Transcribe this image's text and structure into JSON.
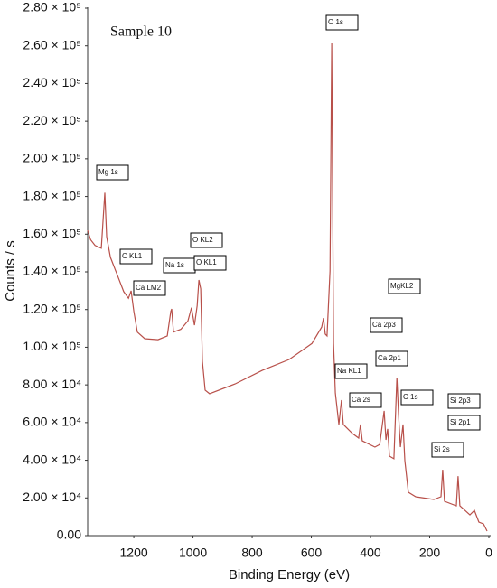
{
  "chart_data": {
    "type": "line",
    "annotations": [
      "Sample 10",
      "O 1s",
      "Mg 1s",
      "C KL1",
      "Na 1s",
      "Ca LM2",
      "O KL2",
      "O KL1",
      "MgKL2",
      "Ca 2p3",
      "Ca 2p1",
      "Na KL1",
      "Ca 2s",
      "C 1s",
      "Si 2p3",
      "Si 2p1",
      "Si 2s"
    ],
    "x_label": "Binding Energy (eV)",
    "y_label": "Counts / s",
    "color": "#b8504a",
    "x": [
      1356,
      1346,
      1331,
      1310,
      1298,
      1292,
      1279,
      1255,
      1234,
      1218,
      1209,
      1200,
      1188,
      1163,
      1118,
      1087,
      1075,
      1072,
      1066,
      1041,
      1017,
      1005,
      995,
      986,
      980,
      974,
      968,
      959,
      944,
      858,
      766,
      675,
      598,
      565,
      559,
      553,
      547,
      537,
      531,
      525,
      519,
      507,
      498,
      492,
      461,
      440,
      434,
      428,
      385,
      369,
      354,
      348,
      342,
      336,
      321,
      311,
      305,
      299,
      290,
      284,
      272,
      247,
      186,
      162,
      156,
      150,
      110,
      104,
      98,
      64,
      49,
      34,
      18,
      6
    ],
    "values": [
      162000,
      157000,
      154000,
      152500,
      182000,
      158700,
      147700,
      138000,
      129500,
      126000,
      130000,
      119000,
      108000,
      104500,
      104000,
      106000,
      119000,
      120300,
      108000,
      109500,
      114000,
      121000,
      111700,
      122000,
      135700,
      131000,
      92500,
      77200,
      75300,
      80500,
      87700,
      93500,
      102000,
      110700,
      115500,
      107000,
      106000,
      140500,
      261300,
      102000,
      75700,
      59000,
      71900,
      59000,
      54200,
      51800,
      59000,
      50300,
      47000,
      48400,
      66200,
      50800,
      56600,
      42200,
      40800,
      83900,
      63800,
      47000,
      59000,
      39800,
      23000,
      20600,
      19200,
      20600,
      35000,
      18200,
      15800,
      31600,
      15800,
      11000,
      13400,
      7200,
      6200,
      2400
    ],
    "xlim": [
      1356,
      0
    ],
    "ylim": [
      0,
      280000
    ],
    "xticks": [
      1200,
      1000,
      800,
      600,
      400,
      200,
      0
    ],
    "yticks": [
      {
        "value": 0,
        "label": "0.00"
      },
      {
        "value": 20000,
        "label": "2.00 × 10⁴"
      },
      {
        "value": 40000,
        "label": "4.00 × 10⁴"
      },
      {
        "value": 60000,
        "label": "6.00 × 10⁴"
      },
      {
        "value": 80000,
        "label": "8.00 × 10⁴"
      },
      {
        "value": 100000,
        "label": "1.00 × 10⁵"
      },
      {
        "value": 120000,
        "label": "1.20 × 10⁵"
      },
      {
        "value": 140000,
        "label": "1.40 × 10⁵"
      },
      {
        "value": 160000,
        "label": "1.60 × 10⁵"
      },
      {
        "value": 180000,
        "label": "1.80 × 10⁵"
      },
      {
        "value": 200000,
        "label": "2.00 × 10⁵"
      },
      {
        "value": 220000,
        "label": "2.20 × 10⁵"
      },
      {
        "value": 240000,
        "label": "2.40 × 10⁵"
      },
      {
        "value": 260000,
        "label": "2.60 × 10⁵"
      },
      {
        "value": 280000,
        "label": "2.80 × 10⁵"
      }
    ],
    "grid": false
  }
}
